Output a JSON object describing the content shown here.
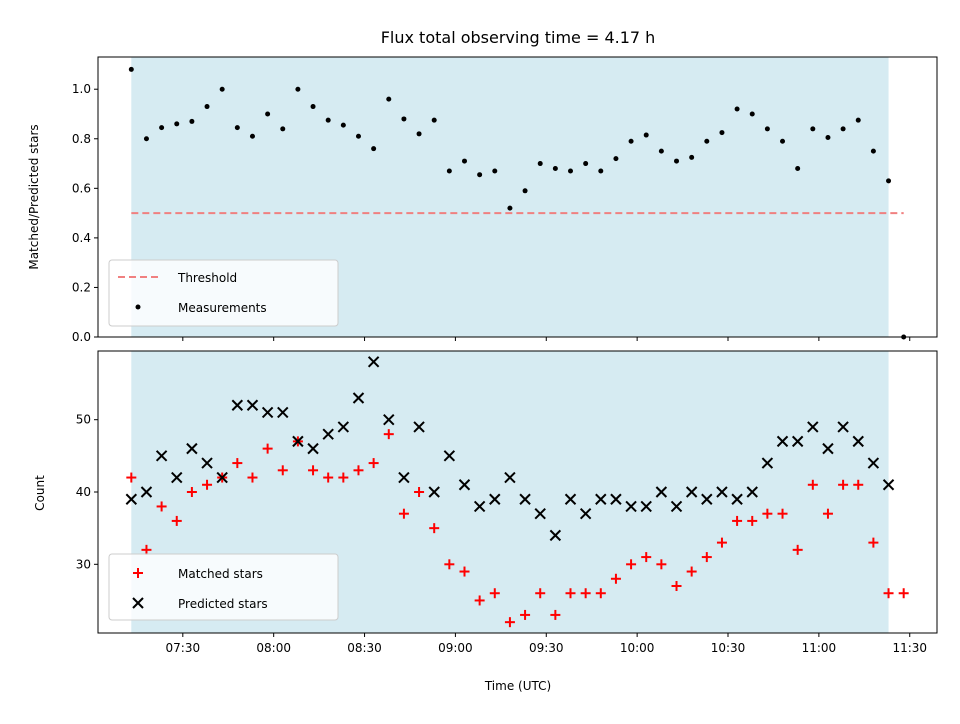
{
  "chart_data": [
    {
      "type": "scatter",
      "panel": "top",
      "title": "Flux total observing time = 4.17 h",
      "ylabel": "Matched/Predicted stars",
      "xlabel": "",
      "ylim": [
        0.0,
        1.13
      ],
      "yticks": [
        "0.0",
        "0.2",
        "0.4",
        "0.6",
        "0.8",
        "1.0"
      ],
      "shaded_interval": [
        "07:13",
        "11:23"
      ],
      "shade_color": "#add8e6",
      "threshold": {
        "name": "Threshold",
        "value": 0.5,
        "color": "#f08080"
      },
      "legend_position": "lower-left",
      "series": [
        {
          "name": "Measurements",
          "color": "#000000",
          "x": [
            "07:13",
            "07:18",
            "07:23",
            "07:28",
            "07:33",
            "07:38",
            "07:43",
            "07:48",
            "07:53",
            "07:58",
            "08:03",
            "08:08",
            "08:13",
            "08:18",
            "08:23",
            "08:28",
            "08:33",
            "08:38",
            "08:43",
            "08:48",
            "08:53",
            "08:58",
            "09:03",
            "09:08",
            "09:13",
            "09:18",
            "09:23",
            "09:28",
            "09:33",
            "09:38",
            "09:43",
            "09:48",
            "09:53",
            "09:58",
            "10:03",
            "10:08",
            "10:13",
            "10:18",
            "10:23",
            "10:28",
            "10:33",
            "10:38",
            "10:43",
            "10:48",
            "10:53",
            "10:58",
            "11:03",
            "11:08",
            "11:13",
            "11:18",
            "11:23",
            "11:28"
          ],
          "values": [
            1.08,
            0.8,
            0.845,
            0.86,
            0.87,
            0.93,
            1.0,
            0.845,
            0.81,
            0.9,
            0.84,
            1.0,
            0.93,
            0.875,
            0.855,
            0.81,
            0.76,
            0.96,
            0.88,
            0.82,
            0.875,
            0.67,
            0.71,
            0.655,
            0.67,
            0.52,
            0.59,
            0.7,
            0.68,
            0.67,
            0.7,
            0.67,
            0.72,
            0.79,
            0.815,
            0.75,
            0.71,
            0.725,
            0.79,
            0.825,
            0.92,
            0.9,
            0.84,
            0.79,
            0.68,
            0.84,
            0.805,
            0.84,
            0.875,
            0.75,
            0.63,
            0.0
          ]
        }
      ]
    },
    {
      "type": "scatter",
      "panel": "bottom",
      "title": "",
      "ylabel": "Count",
      "xlabel": "Time (UTC)",
      "ylim": [
        20.5,
        59.5
      ],
      "yticks": [
        "30",
        "40",
        "50"
      ],
      "xticks": [
        "07:30",
        "08:00",
        "08:30",
        "09:00",
        "09:30",
        "10:00",
        "10:30",
        "11:00",
        "11:30"
      ],
      "shaded_interval": [
        "07:13",
        "11:23"
      ],
      "shade_color": "#add8e6",
      "legend_position": "lower-left",
      "series": [
        {
          "name": "Matched stars",
          "marker": "plus",
          "color": "#ff0000",
          "x": [
            "07:13",
            "07:18",
            "07:23",
            "07:28",
            "07:33",
            "07:38",
            "07:43",
            "07:48",
            "07:53",
            "07:58",
            "08:03",
            "08:08",
            "08:13",
            "08:18",
            "08:23",
            "08:28",
            "08:33",
            "08:38",
            "08:43",
            "08:48",
            "08:53",
            "08:58",
            "09:03",
            "09:08",
            "09:13",
            "09:18",
            "09:23",
            "09:28",
            "09:33",
            "09:38",
            "09:43",
            "09:48",
            "09:53",
            "09:58",
            "10:03",
            "10:08",
            "10:13",
            "10:18",
            "10:23",
            "10:28",
            "10:33",
            "10:38",
            "10:43",
            "10:48",
            "10:53",
            "10:58",
            "11:03",
            "11:08",
            "11:13",
            "11:18",
            "11:23",
            "11:28"
          ],
          "values": [
            42,
            32,
            38,
            36,
            40,
            41,
            42,
            44,
            42,
            46,
            43,
            47,
            43,
            42,
            42,
            43,
            44,
            48,
            37,
            40,
            35,
            30,
            29,
            25,
            26,
            22,
            23,
            26,
            23,
            26,
            26,
            26,
            28,
            30,
            31,
            30,
            27,
            29,
            31,
            33,
            36,
            36,
            37,
            37,
            32,
            41,
            37,
            41,
            41,
            33,
            26,
            26
          ]
        },
        {
          "name": "Predicted stars",
          "marker": "x",
          "color": "#000000",
          "x": [
            "07:13",
            "07:18",
            "07:23",
            "07:28",
            "07:33",
            "07:38",
            "07:43",
            "07:48",
            "07:53",
            "07:58",
            "08:03",
            "08:08",
            "08:13",
            "08:18",
            "08:23",
            "08:28",
            "08:33",
            "08:38",
            "08:43",
            "08:48",
            "08:53",
            "08:58",
            "09:03",
            "09:08",
            "09:13",
            "09:18",
            "09:23",
            "09:28",
            "09:33",
            "09:38",
            "09:43",
            "09:48",
            "09:53",
            "09:58",
            "10:03",
            "10:08",
            "10:13",
            "10:18",
            "10:23",
            "10:28",
            "10:33",
            "10:38",
            "10:43",
            "10:48",
            "10:53",
            "10:58",
            "11:03",
            "11:08",
            "11:13",
            "11:18",
            "11:23"
          ],
          "values": [
            39,
            40,
            45,
            42,
            46,
            44,
            42,
            52,
            52,
            51,
            51,
            47,
            46,
            48,
            49,
            53,
            58,
            50,
            42,
            49,
            40,
            45,
            41,
            38,
            39,
            42,
            39,
            37,
            34,
            39,
            37,
            39,
            39,
            38,
            38,
            40,
            38,
            40,
            39,
            40,
            39,
            40,
            44,
            47,
            47,
            49,
            46,
            49,
            47,
            44,
            41
          ]
        }
      ]
    }
  ]
}
